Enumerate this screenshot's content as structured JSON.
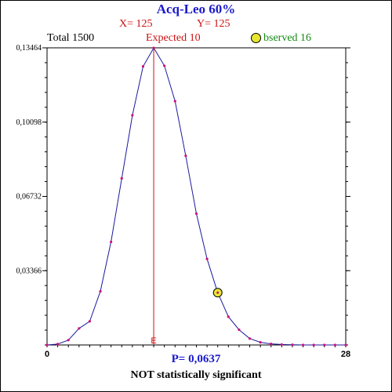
{
  "header": {
    "title": "Acq-Leo  60%",
    "x_text": "X= 125",
    "y_text": "Y= 125",
    "total_text": "Total  1500",
    "expected_text": "Expected  10",
    "observed_text": "bserved  16"
  },
  "footer": {
    "p_text": "P= 0,0637",
    "significance_text": "NOT statistically significant"
  },
  "colors": {
    "title": "#1a1acc",
    "xy": "#cc1111",
    "expected": "#cc1111",
    "observed": "#118811",
    "curve": "#1a1aa0",
    "points": "#cc1177",
    "expected_line": "#cc1111",
    "observed_marker": "#e6e632",
    "p_text": "#1a1acc"
  },
  "chart_data": {
    "type": "line",
    "title": "Acq-Leo  60%",
    "xlabel": "",
    "ylabel": "",
    "xlim": [
      0,
      28
    ],
    "ylim": [
      0,
      0.13464
    ],
    "x_ticks": [
      {
        "value": 0,
        "label": "0"
      },
      {
        "value": 28,
        "label": "28"
      }
    ],
    "y_ticks": [
      {
        "value": 0.03366,
        "label": "0,03366"
      },
      {
        "value": 0.06732,
        "label": "0,06732"
      },
      {
        "value": 0.10098,
        "label": "0,10098"
      },
      {
        "value": 0.13464,
        "label": "0,13464"
      }
    ],
    "expected": {
      "x": 10,
      "label": "E"
    },
    "observed": {
      "x": 16,
      "y": 0.0237
    },
    "series": [
      {
        "x": [
          0,
          1,
          2,
          3,
          4,
          5,
          6,
          7,
          8,
          9,
          10,
          11,
          12,
          13,
          14,
          15,
          16,
          17,
          18,
          19,
          20,
          21,
          22,
          23,
          24,
          25,
          26,
          27,
          28
        ],
        "y": [
          0.0,
          0.0004,
          0.0022,
          0.0075,
          0.0107,
          0.0243,
          0.0467,
          0.0755,
          0.1041,
          0.1262,
          0.1346,
          0.1265,
          0.1105,
          0.0857,
          0.0595,
          0.039,
          0.0237,
          0.0128,
          0.0069,
          0.0029,
          0.0012,
          0.0005,
          0.0002,
          0.0001,
          0.0,
          0.0,
          0.0,
          0.0,
          0.0
        ]
      }
    ]
  }
}
